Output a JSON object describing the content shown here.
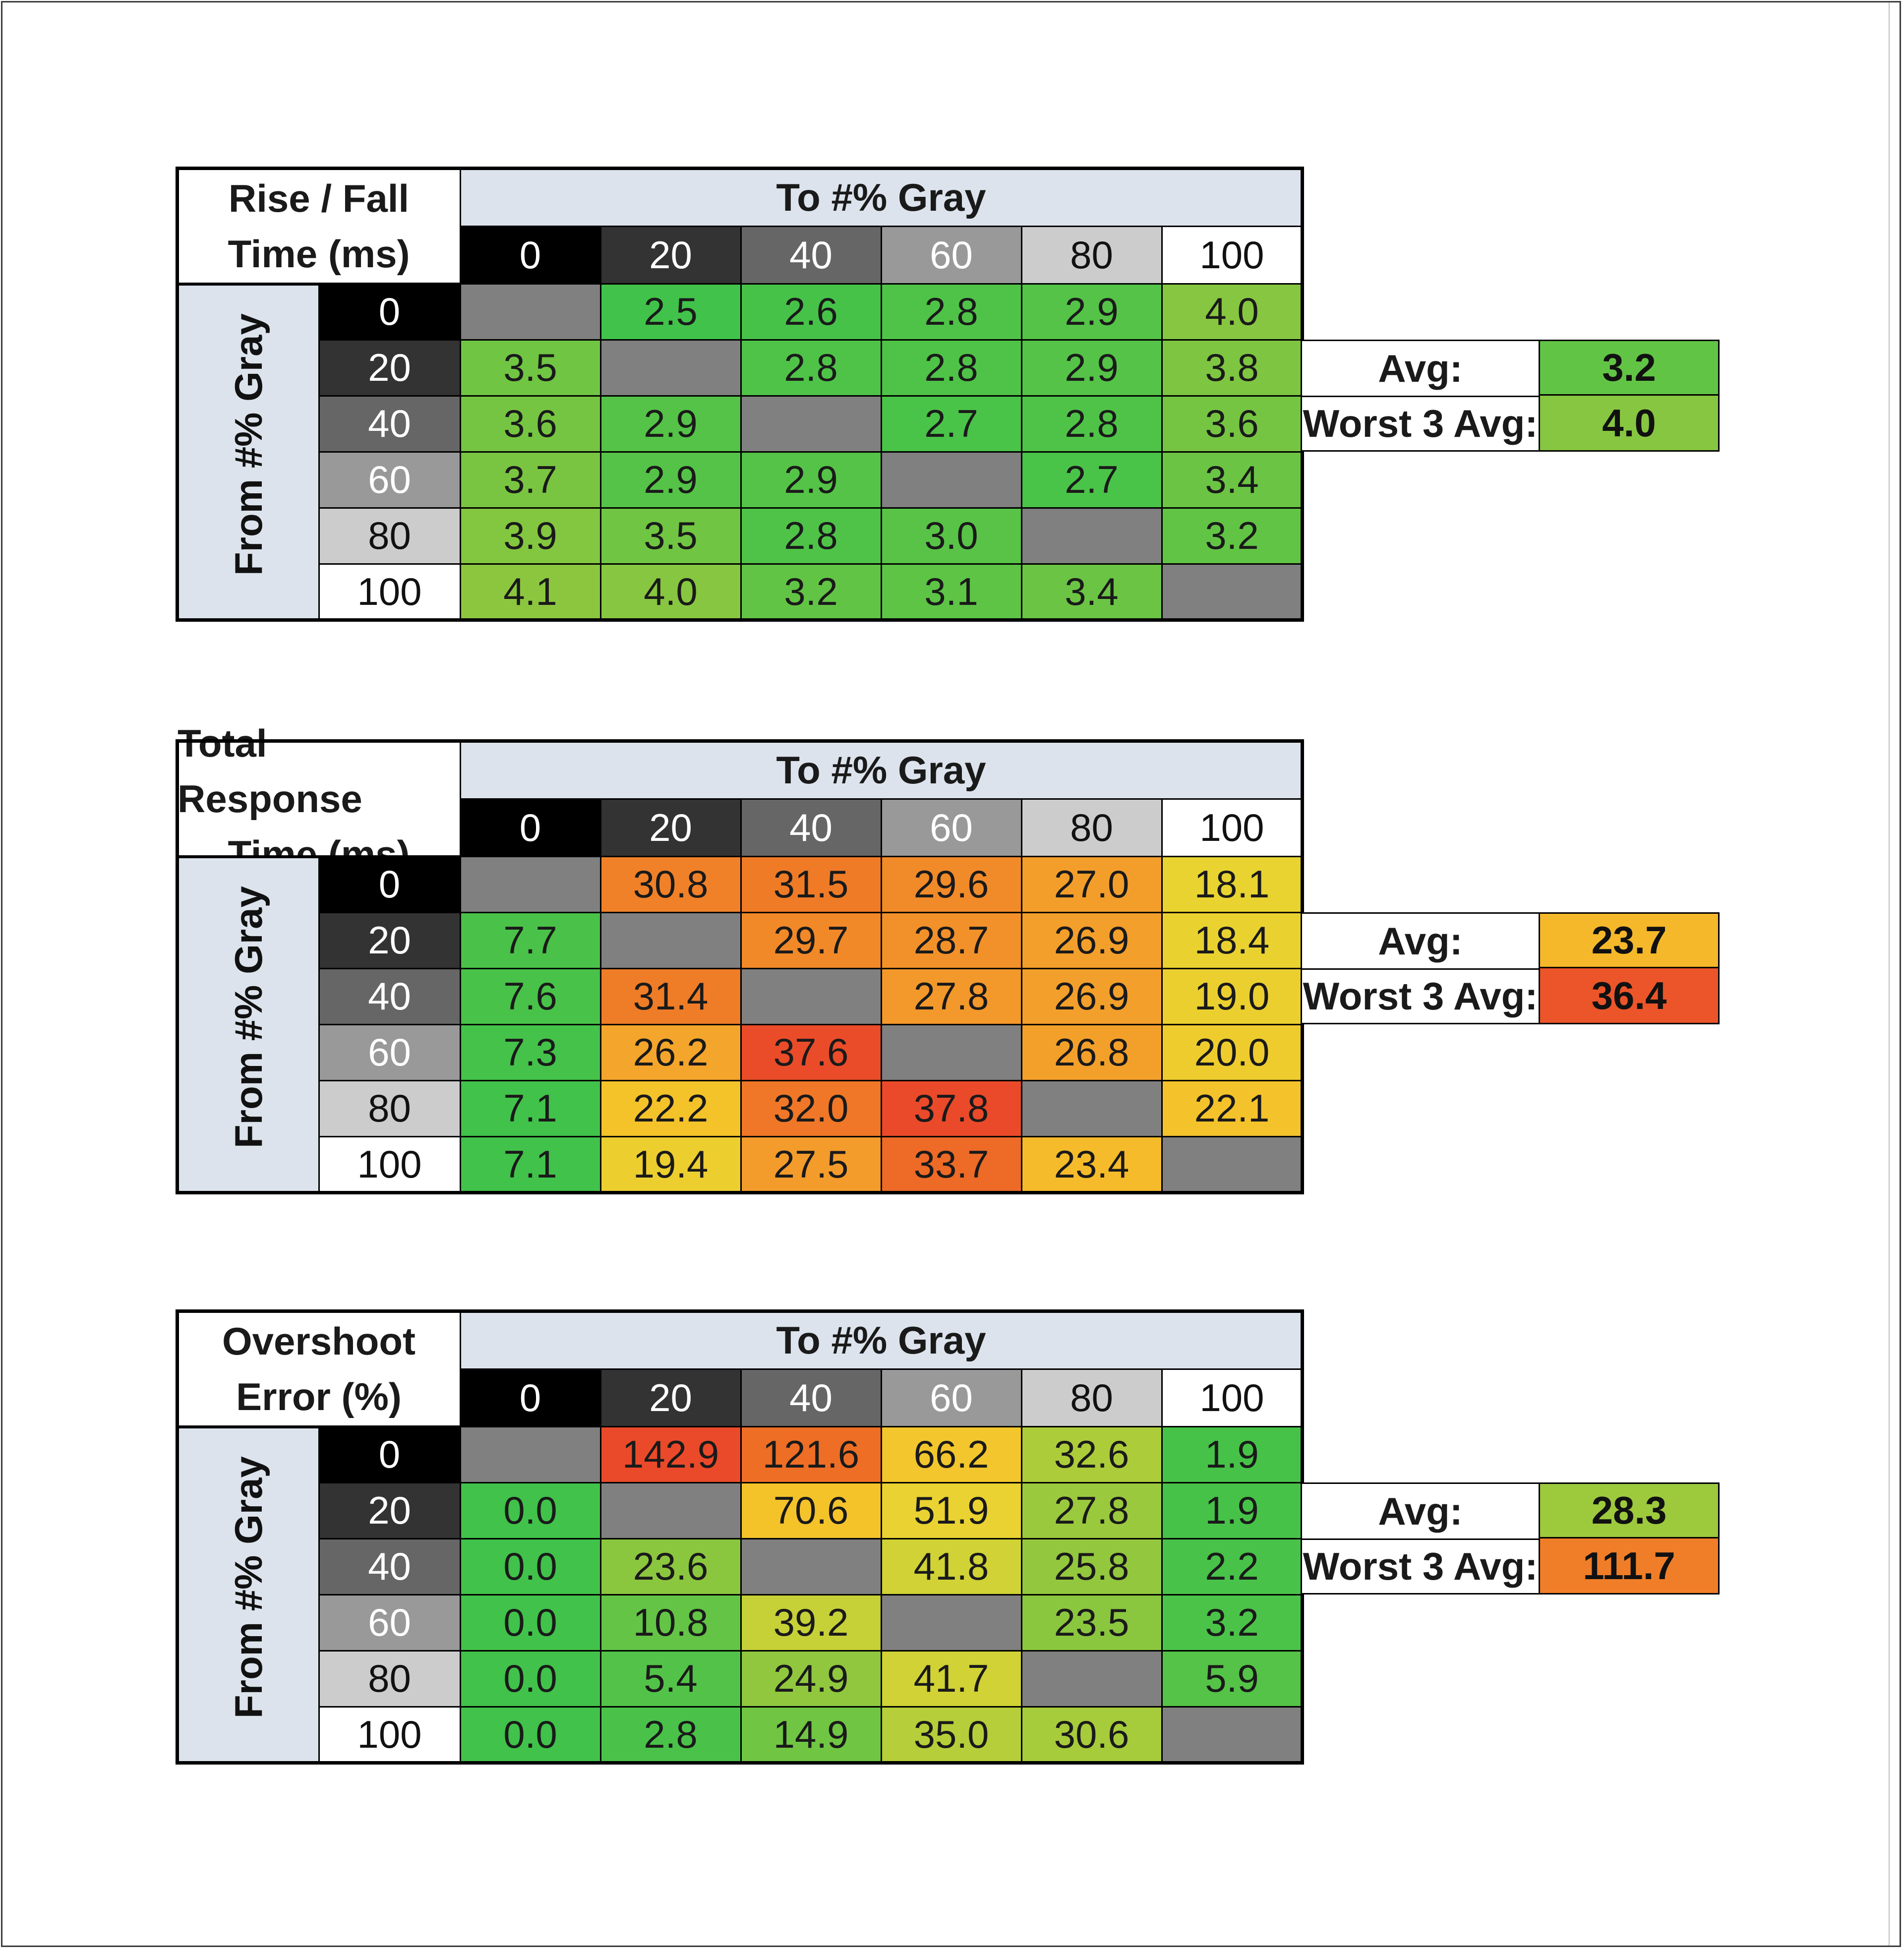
{
  "chart_data": [
    {
      "type": "heatmap",
      "corner_line1": "Rise / Fall",
      "corner_line2": "Time (ms)",
      "xlabel": "To #% Gray",
      "ylabel": "From #% Gray",
      "x_categories": [
        "0",
        "20",
        "40",
        "60",
        "80",
        "100"
      ],
      "y_categories": [
        "0",
        "20",
        "40",
        "60",
        "80",
        "100"
      ],
      "values": [
        [
          null,
          2.5,
          2.6,
          2.8,
          2.9,
          4.0
        ],
        [
          3.5,
          null,
          2.8,
          2.8,
          2.9,
          3.8
        ],
        [
          3.6,
          2.9,
          null,
          2.7,
          2.8,
          3.6
        ],
        [
          3.7,
          2.9,
          2.9,
          null,
          2.7,
          3.4
        ],
        [
          3.9,
          3.5,
          2.8,
          3.0,
          null,
          3.2
        ],
        [
          4.1,
          4.0,
          3.2,
          3.1,
          3.4,
          null
        ]
      ],
      "summary": [
        {
          "label": "Avg:",
          "value": 3.2
        },
        {
          "label": "Worst 3 Avg:",
          "value": 4.0
        }
      ],
      "color_scale": "green-yellow-orange-red"
    },
    {
      "type": "heatmap",
      "corner_line1": "Total Response",
      "corner_line2": "Time (ms)",
      "xlabel": "To #% Gray",
      "ylabel": "From #% Gray",
      "x_categories": [
        "0",
        "20",
        "40",
        "60",
        "80",
        "100"
      ],
      "y_categories": [
        "0",
        "20",
        "40",
        "60",
        "80",
        "100"
      ],
      "values": [
        [
          null,
          30.8,
          31.5,
          29.6,
          27.0,
          18.1
        ],
        [
          7.7,
          null,
          29.7,
          28.7,
          26.9,
          18.4
        ],
        [
          7.6,
          31.4,
          null,
          27.8,
          26.9,
          19.0
        ],
        [
          7.3,
          26.2,
          37.6,
          null,
          26.8,
          20.0
        ],
        [
          7.1,
          22.2,
          32.0,
          37.8,
          null,
          22.1
        ],
        [
          7.1,
          19.4,
          27.5,
          33.7,
          23.4,
          null
        ]
      ],
      "summary": [
        {
          "label": "Avg:",
          "value": 23.7
        },
        {
          "label": "Worst 3 Avg:",
          "value": 36.4
        }
      ],
      "color_scale": "green-yellow-orange-red"
    },
    {
      "type": "heatmap",
      "corner_line1": "Overshoot",
      "corner_line2": "Error (%)",
      "xlabel": "To #% Gray",
      "ylabel": "From #% Gray",
      "x_categories": [
        "0",
        "20",
        "40",
        "60",
        "80",
        "100"
      ],
      "y_categories": [
        "0",
        "20",
        "40",
        "60",
        "80",
        "100"
      ],
      "values": [
        [
          null,
          142.9,
          121.6,
          66.2,
          32.6,
          1.9
        ],
        [
          0.0,
          null,
          70.6,
          51.9,
          27.8,
          1.9
        ],
        [
          0.0,
          23.6,
          null,
          41.8,
          25.8,
          2.2
        ],
        [
          0.0,
          10.8,
          39.2,
          null,
          23.5,
          3.2
        ],
        [
          0.0,
          5.4,
          24.9,
          41.7,
          null,
          5.9
        ],
        [
          0.0,
          2.8,
          14.9,
          35.0,
          30.6,
          null
        ]
      ],
      "summary": [
        {
          "label": "Avg:",
          "value": 28.3
        },
        {
          "label": "Worst 3 Avg:",
          "value": 111.7
        }
      ],
      "color_scale": "green-yellow-orange-red"
    }
  ],
  "colors": {
    "header_bg": "#dce3ec",
    "diagonal": "#808080",
    "gray_levels": [
      "#000000",
      "#333333",
      "#666666",
      "#999999",
      "#cccccc",
      "#ffffff"
    ]
  }
}
